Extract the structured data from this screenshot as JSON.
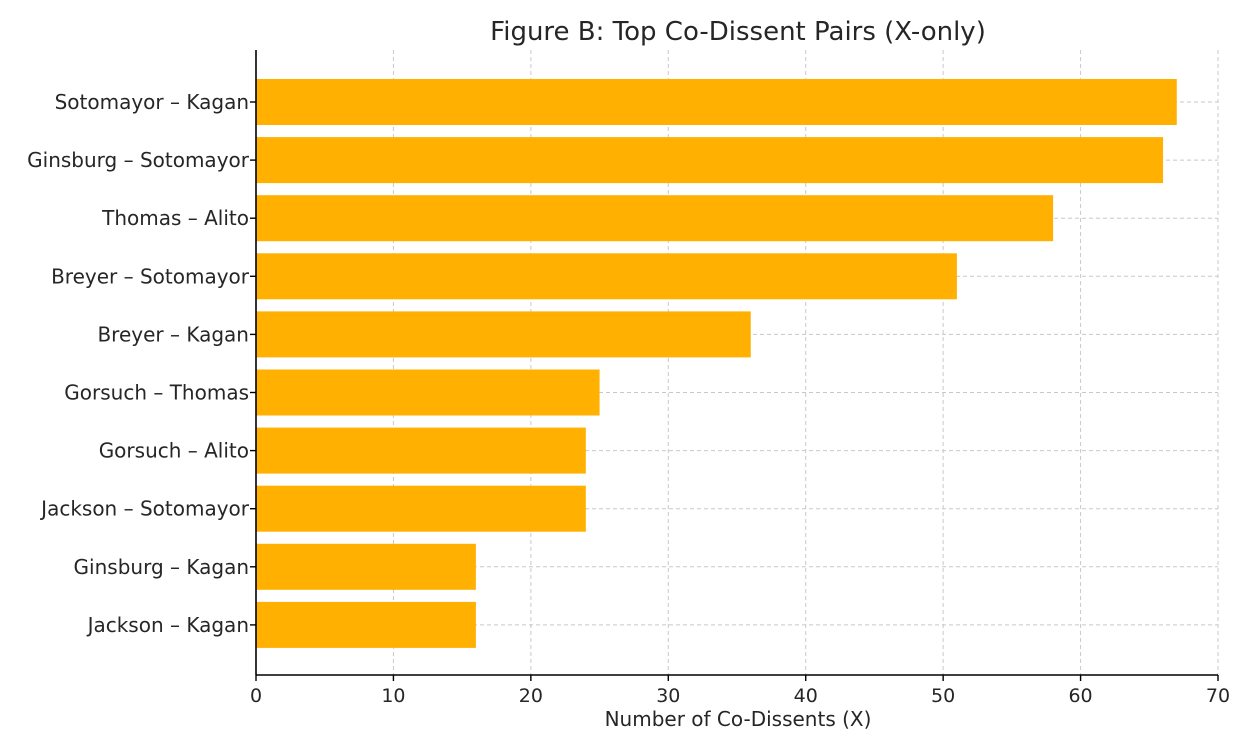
{
  "chart_data": {
    "type": "bar",
    "orientation": "horizontal",
    "title": "Figure B: Top Co-Dissent Pairs (X-only)",
    "xlabel": "Number of Co-Dissents (X)",
    "ylabel": "",
    "xlim": [
      0,
      70
    ],
    "xticks": [
      0,
      10,
      20,
      30,
      40,
      50,
      60,
      70
    ],
    "grid": true,
    "bar_color": "#FFB000",
    "categories": [
      "Sotomayor – Kagan",
      "Ginsburg – Sotomayor",
      "Thomas – Alito",
      "Breyer – Sotomayor",
      "Breyer – Kagan",
      "Gorsuch – Thomas",
      "Gorsuch – Alito",
      "Jackson – Sotomayor",
      "Ginsburg – Kagan",
      "Jackson – Kagan"
    ],
    "values": [
      67,
      66,
      58,
      51,
      36,
      25,
      24,
      24,
      16,
      16
    ]
  }
}
